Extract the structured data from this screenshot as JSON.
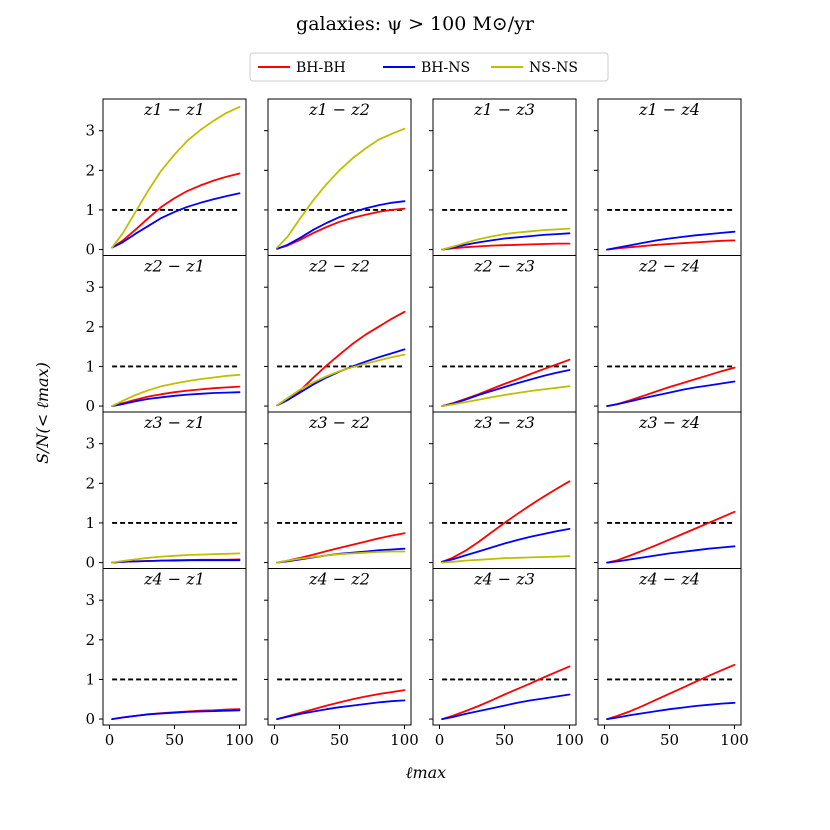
{
  "chart_data": {
    "type": "line",
    "title": "galaxies: ψ > 100 M⊙/yr",
    "xlabel": "ℓmax",
    "ylabel": "S/N(< ℓmax)",
    "xlim": [
      -5,
      105
    ],
    "ylim": [
      -0.15,
      3.8
    ],
    "x_ticks": [
      0,
      50,
      100
    ],
    "y_ticks": [
      0,
      1,
      2,
      3
    ],
    "threshold": 1,
    "legend": {
      "location": "top-center",
      "entries": [
        "BH-BH",
        "BH-NS",
        "NS-NS"
      ]
    },
    "colors": {
      "BH-BH": "#ff0000",
      "BH-NS": "#0000ff",
      "NS-NS": "#bfbf00",
      "threshold": "#000000"
    },
    "x": [
      2,
      10,
      20,
      30,
      40,
      50,
      60,
      70,
      80,
      90,
      100
    ],
    "panels": [
      {
        "label": "z1 − z1",
        "series": [
          {
            "name": "BH-BH",
            "values": [
              0.05,
              0.22,
              0.5,
              0.8,
              1.08,
              1.3,
              1.48,
              1.62,
              1.74,
              1.84,
              1.92
            ]
          },
          {
            "name": "BH-NS",
            "values": [
              0.05,
              0.18,
              0.4,
              0.6,
              0.8,
              0.95,
              1.08,
              1.18,
              1.27,
              1.35,
              1.42
            ]
          },
          {
            "name": "NS-NS",
            "values": [
              0.05,
              0.4,
              0.95,
              1.5,
              2.0,
              2.4,
              2.75,
              3.02,
              3.25,
              3.45,
              3.6
            ]
          }
        ]
      },
      {
        "label": "z1 − z2",
        "series": [
          {
            "name": "BH-BH",
            "values": [
              0.02,
              0.1,
              0.25,
              0.42,
              0.57,
              0.7,
              0.8,
              0.88,
              0.95,
              1.0,
              1.03
            ]
          },
          {
            "name": "BH-NS",
            "values": [
              0.02,
              0.12,
              0.3,
              0.5,
              0.67,
              0.82,
              0.94,
              1.04,
              1.12,
              1.18,
              1.22
            ]
          },
          {
            "name": "NS-NS",
            "values": [
              0.05,
              0.32,
              0.8,
              1.25,
              1.65,
              2.0,
              2.3,
              2.55,
              2.77,
              2.92,
              3.05
            ]
          }
        ]
      },
      {
        "label": "z1 − z3",
        "series": [
          {
            "name": "BH-BH",
            "values": [
              0.0,
              0.03,
              0.06,
              0.08,
              0.1,
              0.11,
              0.12,
              0.13,
              0.14,
              0.15,
              0.15
            ]
          },
          {
            "name": "BH-NS",
            "values": [
              0.0,
              0.05,
              0.12,
              0.18,
              0.23,
              0.28,
              0.31,
              0.34,
              0.37,
              0.39,
              0.41
            ]
          },
          {
            "name": "NS-NS",
            "values": [
              0.0,
              0.07,
              0.17,
              0.26,
              0.33,
              0.39,
              0.43,
              0.46,
              0.49,
              0.51,
              0.53
            ]
          }
        ]
      },
      {
        "label": "z1 − z4",
        "series": [
          {
            "name": "BH-BH",
            "values": [
              0.0,
              0.03,
              0.06,
              0.09,
              0.12,
              0.14,
              0.16,
              0.18,
              0.2,
              0.22,
              0.23
            ]
          },
          {
            "name": "BH-NS",
            "values": [
              0.0,
              0.05,
              0.11,
              0.17,
              0.23,
              0.28,
              0.32,
              0.36,
              0.39,
              0.42,
              0.45
            ]
          }
        ]
      },
      {
        "label": "z2 − z1",
        "series": [
          {
            "name": "BH-BH",
            "values": [
              0.0,
              0.07,
              0.16,
              0.24,
              0.3,
              0.35,
              0.39,
              0.42,
              0.45,
              0.47,
              0.49
            ]
          },
          {
            "name": "BH-NS",
            "values": [
              0.0,
              0.05,
              0.12,
              0.18,
              0.22,
              0.26,
              0.29,
              0.31,
              0.33,
              0.34,
              0.35
            ]
          },
          {
            "name": "NS-NS",
            "values": [
              0.0,
              0.13,
              0.28,
              0.4,
              0.5,
              0.57,
              0.63,
              0.68,
              0.72,
              0.76,
              0.79
            ]
          }
        ]
      },
      {
        "label": "z2 − z2",
        "series": [
          {
            "name": "BH-BH",
            "values": [
              0.02,
              0.15,
              0.4,
              0.72,
              1.02,
              1.3,
              1.57,
              1.8,
              2.0,
              2.2,
              2.38
            ]
          },
          {
            "name": "BH-NS",
            "values": [
              0.02,
              0.15,
              0.35,
              0.55,
              0.72,
              0.87,
              1.0,
              1.12,
              1.23,
              1.33,
              1.43
            ]
          },
          {
            "name": "NS-NS",
            "values": [
              0.02,
              0.2,
              0.42,
              0.6,
              0.75,
              0.88,
              0.98,
              1.07,
              1.15,
              1.23,
              1.3
            ]
          }
        ]
      },
      {
        "label": "z2 − z3",
        "series": [
          {
            "name": "BH-BH",
            "values": [
              0.0,
              0.07,
              0.18,
              0.3,
              0.43,
              0.56,
              0.68,
              0.81,
              0.93,
              1.05,
              1.17
            ]
          },
          {
            "name": "BH-NS",
            "values": [
              0.0,
              0.06,
              0.16,
              0.28,
              0.38,
              0.48,
              0.58,
              0.67,
              0.76,
              0.84,
              0.91
            ]
          },
          {
            "name": "NS-NS",
            "values": [
              0.0,
              0.04,
              0.1,
              0.16,
              0.22,
              0.28,
              0.33,
              0.38,
              0.42,
              0.46,
              0.5
            ]
          }
        ]
      },
      {
        "label": "z2 − z4",
        "series": [
          {
            "name": "BH-BH",
            "values": [
              0.0,
              0.05,
              0.15,
              0.26,
              0.37,
              0.48,
              0.58,
              0.68,
              0.78,
              0.88,
              0.97
            ]
          },
          {
            "name": "BH-NS",
            "values": [
              0.0,
              0.05,
              0.12,
              0.2,
              0.27,
              0.34,
              0.41,
              0.47,
              0.52,
              0.57,
              0.62
            ]
          }
        ]
      },
      {
        "label": "z3 − z1",
        "series": [
          {
            "name": "BH-BH",
            "values": [
              0.0,
              0.02,
              0.03,
              0.04,
              0.05,
              0.06,
              0.06,
              0.07,
              0.07,
              0.07,
              0.08
            ]
          },
          {
            "name": "BH-NS",
            "values": [
              0.0,
              0.02,
              0.03,
              0.04,
              0.05,
              0.05,
              0.06,
              0.06,
              0.06,
              0.06,
              0.06
            ]
          },
          {
            "name": "NS-NS",
            "values": [
              0.0,
              0.04,
              0.08,
              0.12,
              0.15,
              0.17,
              0.19,
              0.2,
              0.21,
              0.22,
              0.23
            ]
          }
        ]
      },
      {
        "label": "z3 − z2",
        "series": [
          {
            "name": "BH-BH",
            "values": [
              0.0,
              0.05,
              0.12,
              0.2,
              0.29,
              0.37,
              0.45,
              0.53,
              0.61,
              0.68,
              0.74
            ]
          },
          {
            "name": "BH-NS",
            "values": [
              0.0,
              0.03,
              0.08,
              0.13,
              0.18,
              0.22,
              0.25,
              0.28,
              0.31,
              0.33,
              0.35
            ]
          },
          {
            "name": "NS-NS",
            "values": [
              0.0,
              0.05,
              0.1,
              0.14,
              0.18,
              0.21,
              0.23,
              0.25,
              0.27,
              0.28,
              0.28
            ]
          }
        ]
      },
      {
        "label": "z3 − z3",
        "series": [
          {
            "name": "BH-BH",
            "values": [
              0.02,
              0.12,
              0.3,
              0.52,
              0.76,
              1.0,
              1.23,
              1.45,
              1.66,
              1.86,
              2.05
            ]
          },
          {
            "name": "BH-NS",
            "values": [
              0.02,
              0.08,
              0.18,
              0.28,
              0.38,
              0.48,
              0.57,
              0.65,
              0.72,
              0.79,
              0.85
            ]
          },
          {
            "name": "NS-NS",
            "values": [
              0.0,
              0.02,
              0.05,
              0.07,
              0.09,
              0.11,
              0.12,
              0.13,
              0.14,
              0.15,
              0.16
            ]
          }
        ]
      },
      {
        "label": "z3 − z4",
        "series": [
          {
            "name": "BH-BH",
            "values": [
              0.0,
              0.06,
              0.18,
              0.31,
              0.44,
              0.58,
              0.72,
              0.86,
              1.0,
              1.14,
              1.28
            ]
          },
          {
            "name": "BH-NS",
            "values": [
              0.0,
              0.03,
              0.08,
              0.13,
              0.18,
              0.23,
              0.27,
              0.31,
              0.35,
              0.38,
              0.41
            ]
          }
        ]
      },
      {
        "label": "z4 − z1",
        "series": [
          {
            "name": "BH-BH",
            "values": [
              0.0,
              0.04,
              0.08,
              0.12,
              0.15,
              0.17,
              0.19,
              0.21,
              0.22,
              0.24,
              0.25
            ]
          },
          {
            "name": "BH-NS",
            "values": [
              0.0,
              0.04,
              0.08,
              0.12,
              0.14,
              0.16,
              0.18,
              0.19,
              0.2,
              0.21,
              0.22
            ]
          }
        ]
      },
      {
        "label": "z4 − z2",
        "series": [
          {
            "name": "BH-BH",
            "values": [
              0.0,
              0.07,
              0.16,
              0.25,
              0.34,
              0.42,
              0.5,
              0.57,
              0.63,
              0.68,
              0.73
            ]
          },
          {
            "name": "BH-NS",
            "values": [
              0.0,
              0.06,
              0.13,
              0.19,
              0.25,
              0.3,
              0.34,
              0.38,
              0.42,
              0.45,
              0.47
            ]
          }
        ]
      },
      {
        "label": "z4 − z3",
        "series": [
          {
            "name": "BH-BH",
            "values": [
              0.0,
              0.08,
              0.2,
              0.33,
              0.47,
              0.62,
              0.76,
              0.9,
              1.05,
              1.19,
              1.33
            ]
          },
          {
            "name": "BH-NS",
            "values": [
              0.0,
              0.05,
              0.13,
              0.2,
              0.27,
              0.34,
              0.41,
              0.47,
              0.52,
              0.57,
              0.62
            ]
          }
        ]
      },
      {
        "label": "z4 − z4",
        "series": [
          {
            "name": "BH-BH",
            "values": [
              0.0,
              0.08,
              0.2,
              0.34,
              0.49,
              0.64,
              0.79,
              0.94,
              1.09,
              1.23,
              1.37
            ]
          },
          {
            "name": "BH-NS",
            "values": [
              0.0,
              0.04,
              0.1,
              0.15,
              0.2,
              0.25,
              0.29,
              0.33,
              0.36,
              0.39,
              0.41
            ]
          }
        ]
      }
    ]
  }
}
